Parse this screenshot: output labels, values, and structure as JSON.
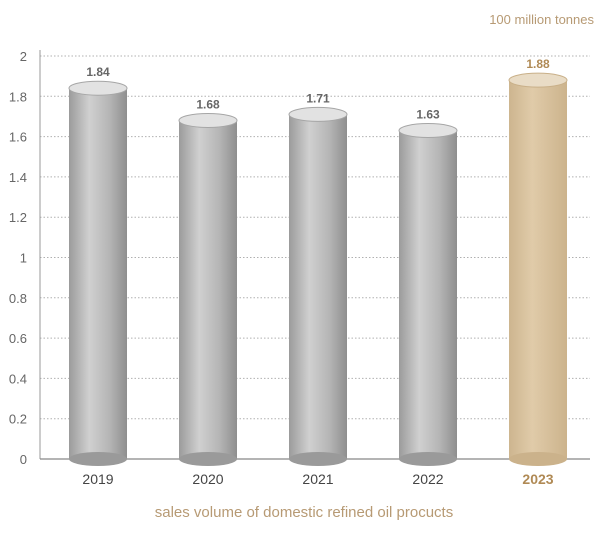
{
  "chart_data": {
    "type": "bar",
    "unit_label": "100 million tonnes",
    "caption": "sales volume of domestic refined oil procucts",
    "categories": [
      "2019",
      "2020",
      "2021",
      "2022",
      "2023"
    ],
    "values": [
      1.84,
      1.68,
      1.71,
      1.63,
      1.88
    ],
    "value_labels": [
      "1.84",
      "1.68",
      "1.71",
      "1.63",
      "1.88"
    ],
    "highlight_category": "2023",
    "y_ticks": [
      "0",
      "0.2",
      "0.4",
      "0.6",
      "0.8",
      "1",
      "1.2",
      "1.4",
      "1.6",
      "1.8",
      "2"
    ],
    "ylim": [
      0,
      2
    ],
    "grid": true,
    "colors": {
      "bar": "#b8b8b8",
      "bar_highlight": "#d6bf9d",
      "label": "#666666",
      "label_highlight": "#b08a55",
      "unit_text": "#b79a74"
    }
  }
}
